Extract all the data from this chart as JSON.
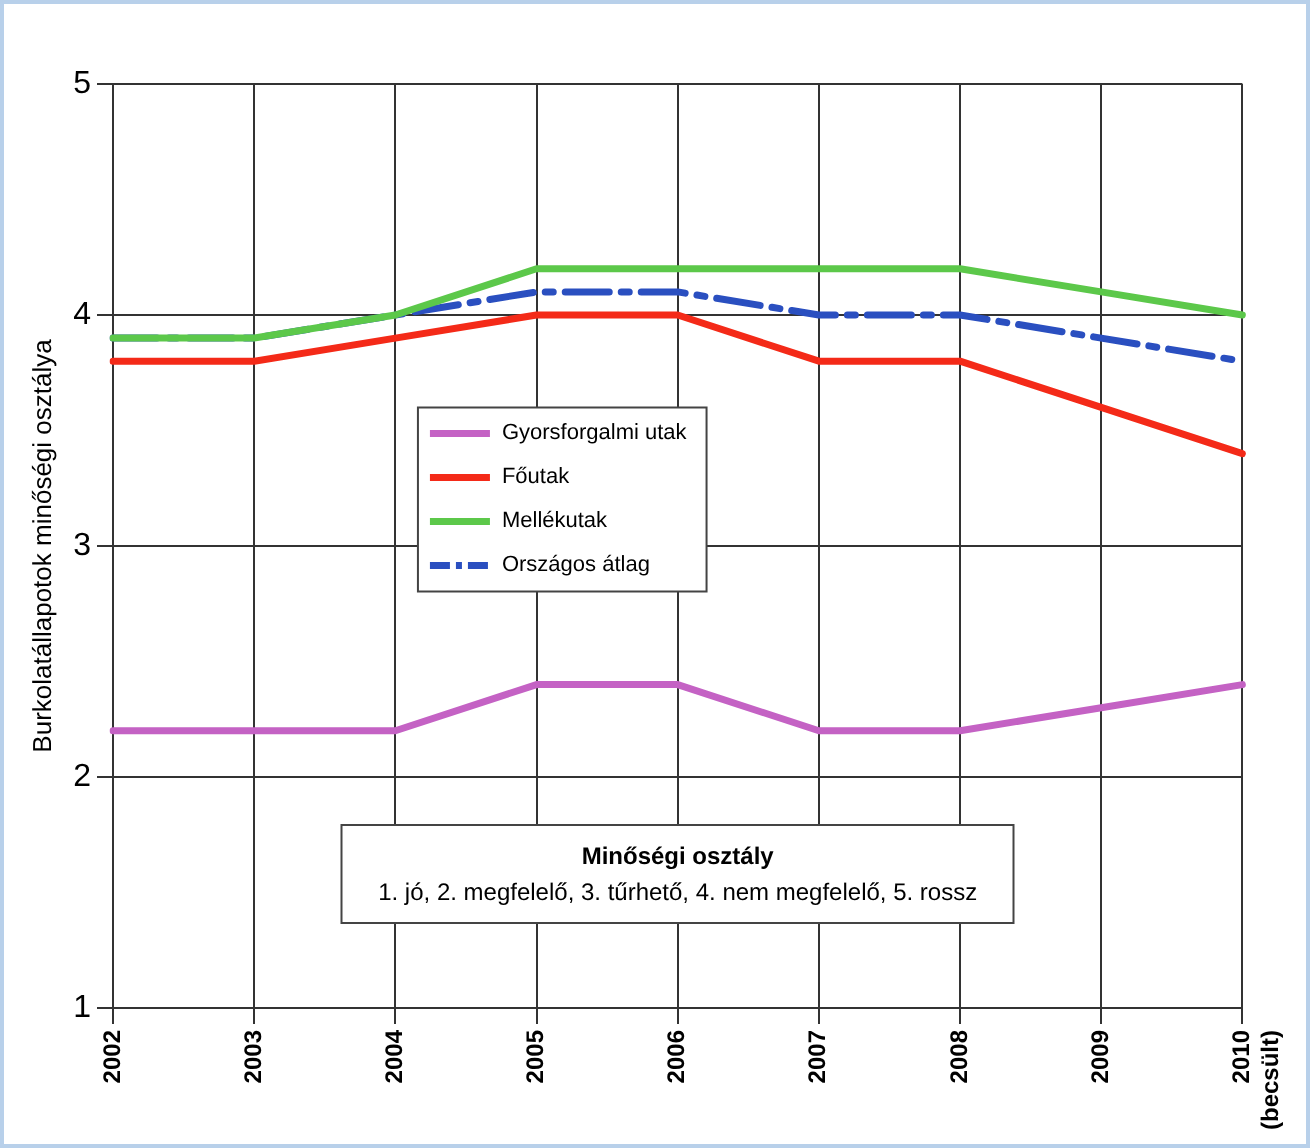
{
  "chart_data": {
    "type": "line",
    "ylabel": "Burkolatállapotok minőségi osztálya",
    "categories": [
      "2002",
      "2003",
      "2004",
      "2005",
      "2006",
      "2007",
      "2008",
      "2009",
      "2010 (becsült)"
    ],
    "series": [
      {
        "name": "Gyorsforgalmi utak",
        "color": "#c462c4",
        "values": [
          2.2,
          2.2,
          2.2,
          2.4,
          2.4,
          2.2,
          2.2,
          2.3,
          2.4
        ]
      },
      {
        "name": "Főutak",
        "color": "#f42a18",
        "values": [
          3.8,
          3.8,
          3.9,
          4.0,
          4.0,
          3.8,
          3.8,
          3.6,
          3.4
        ]
      },
      {
        "name": "Mellékutak",
        "color": "#5cc84a",
        "values": [
          3.9,
          3.9,
          4.0,
          4.2,
          4.2,
          4.2,
          4.2,
          4.1,
          4.0
        ]
      },
      {
        "name": "Országos átlag",
        "color": "#2a4fc0",
        "line_style": "dashed",
        "values": [
          3.9,
          3.9,
          4.0,
          4.1,
          4.1,
          4.0,
          4.0,
          3.9,
          3.8
        ]
      }
    ],
    "ylim": [
      1,
      5
    ],
    "yticks": [
      1,
      2,
      3,
      4,
      5
    ],
    "grid": true,
    "legend": "center",
    "marker": "none",
    "annotations": [
      "Minőségi osztály",
      "1. jó, 2. megfelelő, 3. tűrhető, 4. nem megfelelő, 5. rossz"
    ]
  }
}
